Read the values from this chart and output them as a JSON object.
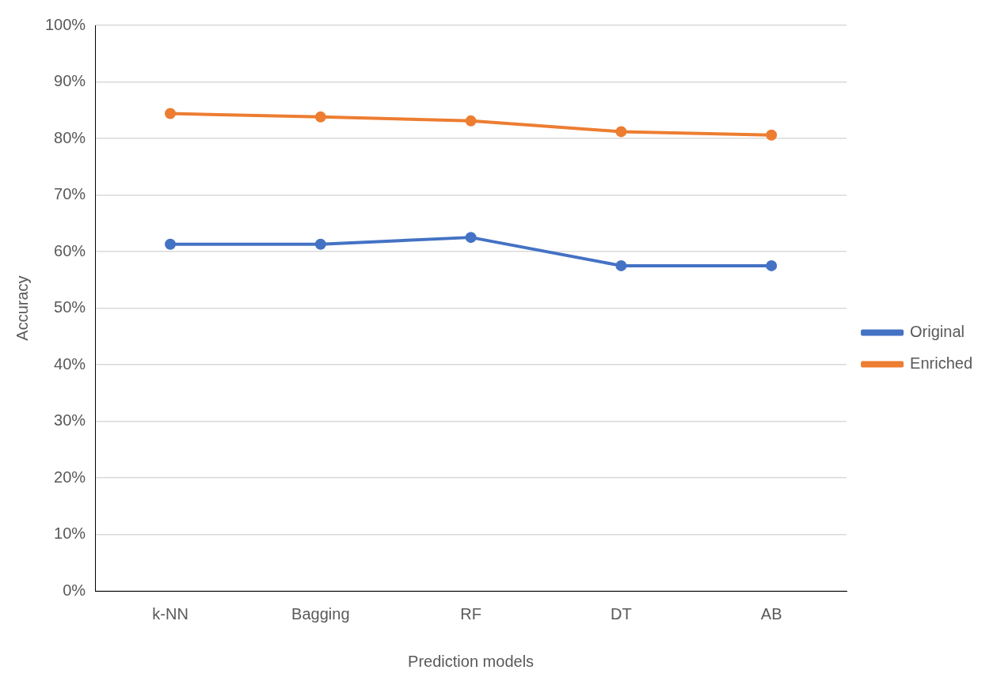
{
  "chart_data": {
    "type": "line",
    "xlabel": "Prediction models",
    "ylabel": "Accuracy",
    "categories": [
      "k-NN",
      "Bagging",
      "RF",
      "DT",
      "AB"
    ],
    "series": [
      {
        "name": "Original",
        "color": "#4472c4",
        "values": [
          61.3,
          61.3,
          62.5,
          57.5,
          57.5
        ]
      },
      {
        "name": "Enriched",
        "color": "#ed7d31",
        "values": [
          84.4,
          83.8,
          83.1,
          81.2,
          80.6
        ]
      }
    ],
    "ylim": [
      0,
      100
    ],
    "yticks": [
      {
        "value": 0,
        "label": "0%"
      },
      {
        "value": 10,
        "label": "10%"
      },
      {
        "value": 20,
        "label": "20%"
      },
      {
        "value": 30,
        "label": "30%"
      },
      {
        "value": 40,
        "label": "40%"
      },
      {
        "value": 50,
        "label": "50%"
      },
      {
        "value": 60,
        "label": "60%"
      },
      {
        "value": 70,
        "label": "70%"
      },
      {
        "value": 80,
        "label": "80%"
      },
      {
        "value": 90,
        "label": "90%"
      },
      {
        "value": 100,
        "label": "100%"
      }
    ],
    "grid": "y",
    "legend": "right",
    "marker": "circle",
    "line_style": "solid"
  }
}
